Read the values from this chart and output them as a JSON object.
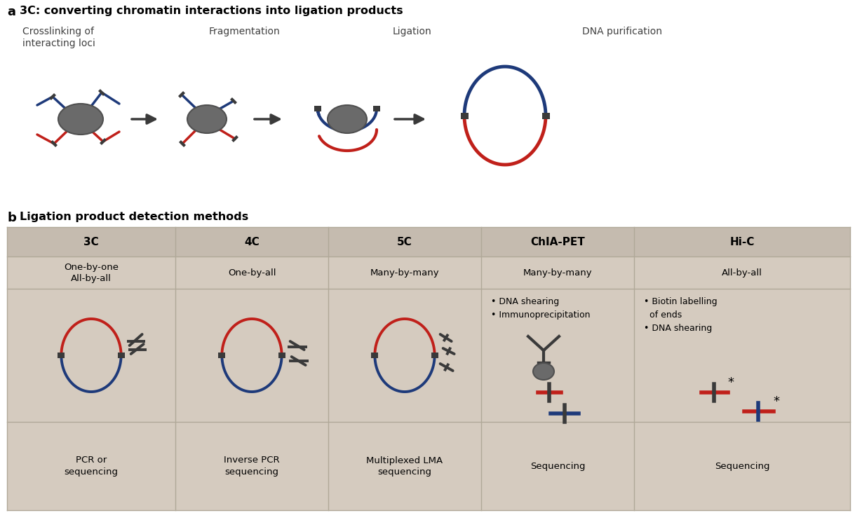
{
  "bg_color": "#ffffff",
  "panel_a_title": "3C: converting chromatin interactions into ligation products",
  "panel_b_title": "Ligation product detection methods",
  "panel_a_label": "a",
  "panel_b_label": "b",
  "step_labels": [
    "Crosslinking of\ninteracting loci",
    "Fragmentation",
    "Ligation",
    "DNA purification"
  ],
  "table_headers": [
    "3C",
    "4C",
    "5C",
    "ChIA-PET",
    "Hi-C"
  ],
  "row1": [
    "One-by-one\nAll-by-all",
    "One-by-all",
    "Many-by-many",
    "Many-by-many",
    "All-by-all"
  ],
  "row3": [
    "PCR or\nsequencing",
    "Inverse PCR\nsequencing",
    "Multiplexed LMA\nsequencing",
    "Sequencing",
    "Sequencing"
  ],
  "chia_pet_bullets": "• DNA shearing\n• Immunoprecipitation",
  "hi_c_bullets": "• Biotin labelling\n  of ends\n• DNA shearing",
  "blue_color": "#1e3a7a",
  "red_color": "#c0201a",
  "gray_nucleus": "#707070",
  "dark_gray": "#3a3a3a",
  "table_bg": "#d5cbbf",
  "header_bg": "#c5bbaf",
  "line_color": "#b0a898"
}
